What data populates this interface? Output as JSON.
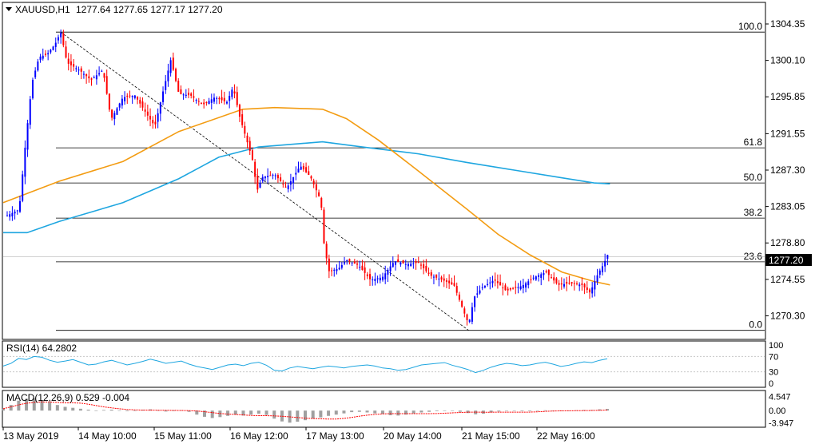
{
  "header": {
    "symbol": "XAUUSD,H1",
    "ohlc": "1277.64 1277.65 1277.17 1277.20"
  },
  "chart_data": [
    {
      "type": "candlestick",
      "name": "price",
      "ylim": [
        1268.2,
        1306.4
      ],
      "y_ticks": [
        "1304.35",
        "1300.10",
        "1295.85",
        "1291.55",
        "1287.30",
        "1283.05",
        "1278.80",
        "1274.55",
        "1270.30"
      ],
      "price_tag": "1277.20",
      "x_ticks": [
        "13 May 2019",
        "14 May 10:00",
        "15 May 11:00",
        "16 May 12:00",
        "17 May 13:00",
        "20 May 14:00",
        "21 May 15:00",
        "22 May 16:00"
      ],
      "fibonacci": [
        {
          "label": "100.0",
          "price": 1303.4
        },
        {
          "label": "61.8",
          "price": 1289.9
        },
        {
          "label": "50.0",
          "price": 1285.8
        },
        {
          "label": "38.2",
          "price": 1281.7
        },
        {
          "label": "23.6",
          "price": 1276.6
        },
        {
          "label": "0.0",
          "price": 1268.6
        }
      ],
      "colors": {
        "up": "#0000ff",
        "down": "#ff0000",
        "ma_fast": "#f39c12",
        "ma_slow": "#1ea6e0",
        "fib": "#000000"
      },
      "ma_fast": [
        [
          0,
          1283.5
        ],
        [
          70,
          1286.0
        ],
        [
          150,
          1288.3
        ],
        [
          220,
          1291.8
        ],
        [
          300,
          1294.4
        ],
        [
          340,
          1294.6
        ],
        [
          400,
          1294.4
        ],
        [
          430,
          1293.3
        ],
        [
          470,
          1290.8
        ],
        [
          520,
          1287.2
        ],
        [
          580,
          1282.8
        ],
        [
          620,
          1279.8
        ],
        [
          660,
          1277.4
        ],
        [
          700,
          1275.4
        ],
        [
          740,
          1274.3
        ],
        [
          760,
          1273.9
        ]
      ],
      "ma_slow": [
        [
          0,
          1280.0
        ],
        [
          30,
          1280.0
        ],
        [
          70,
          1281.3
        ],
        [
          150,
          1283.5
        ],
        [
          220,
          1286.3
        ],
        [
          270,
          1288.8
        ],
        [
          320,
          1290.0
        ],
        [
          360,
          1290.3
        ],
        [
          400,
          1290.6
        ],
        [
          450,
          1290.0
        ],
        [
          520,
          1289.2
        ],
        [
          580,
          1288.2
        ],
        [
          640,
          1287.3
        ],
        [
          700,
          1286.4
        ],
        [
          740,
          1285.8
        ],
        [
          760,
          1285.7
        ]
      ],
      "path": [
        [
          5,
          1282.0
        ],
        [
          20,
          1282.7
        ],
        [
          28,
          1290.5
        ],
        [
          36,
          1297.5
        ],
        [
          45,
          1300.5
        ],
        [
          55,
          1300.8
        ],
        [
          65,
          1302.0
        ],
        [
          72,
          1303.4
        ],
        [
          80,
          1299.8
        ],
        [
          95,
          1299.0
        ],
        [
          110,
          1297.8
        ],
        [
          125,
          1299.0
        ],
        [
          135,
          1293.2
        ],
        [
          150,
          1295.8
        ],
        [
          165,
          1296.0
        ],
        [
          180,
          1293.8
        ],
        [
          190,
          1292.4
        ],
        [
          200,
          1296.4
        ],
        [
          210,
          1300.2
        ],
        [
          220,
          1296.2
        ],
        [
          235,
          1296.0
        ],
        [
          250,
          1294.9
        ],
        [
          265,
          1295.8
        ],
        [
          280,
          1295.2
        ],
        [
          288,
          1297.0
        ],
        [
          296,
          1293.6
        ],
        [
          305,
          1290.8
        ],
        [
          312,
          1288.6
        ],
        [
          318,
          1284.9
        ],
        [
          325,
          1286.5
        ],
        [
          340,
          1286.8
        ],
        [
          355,
          1285.2
        ],
        [
          372,
          1287.8
        ],
        [
          385,
          1286.5
        ],
        [
          398,
          1283.7
        ],
        [
          402,
          1278.5
        ],
        [
          408,
          1275.5
        ],
        [
          420,
          1275.8
        ],
        [
          430,
          1276.8
        ],
        [
          445,
          1276.2
        ],
        [
          460,
          1274.5
        ],
        [
          475,
          1274.8
        ],
        [
          490,
          1276.7
        ],
        [
          505,
          1276.3
        ],
        [
          520,
          1276.5
        ],
        [
          535,
          1275.0
        ],
        [
          550,
          1274.5
        ],
        [
          565,
          1273.8
        ],
        [
          576,
          1271.0
        ],
        [
          583,
          1269.3
        ],
        [
          590,
          1272.5
        ],
        [
          600,
          1273.6
        ],
        [
          615,
          1274.5
        ],
        [
          630,
          1273.2
        ],
        [
          650,
          1273.8
        ],
        [
          665,
          1274.8
        ],
        [
          680,
          1275.4
        ],
        [
          695,
          1273.9
        ],
        [
          710,
          1274.1
        ],
        [
          725,
          1273.9
        ],
        [
          735,
          1273.0
        ],
        [
          745,
          1275.2
        ],
        [
          752,
          1276.3
        ],
        [
          757,
          1277.4
        ],
        [
          760,
          1277.2
        ]
      ]
    },
    {
      "type": "line",
      "name": "rsi",
      "label": "RSI(14) 64.2802",
      "y_ticks": [
        "100",
        "70",
        "30",
        "0"
      ],
      "ylim": [
        0,
        100
      ],
      "values": [
        45,
        52,
        65,
        62,
        70,
        68,
        60,
        55,
        58,
        62,
        55,
        48,
        50,
        56,
        60,
        54,
        48,
        52,
        57,
        63,
        58,
        52,
        55,
        58,
        50,
        44,
        40,
        36,
        42,
        48,
        50,
        46,
        52,
        55,
        47,
        34,
        32,
        40,
        44,
        41,
        38,
        42,
        45,
        43,
        40,
        44,
        46,
        48,
        45,
        40,
        38,
        34,
        36,
        42,
        48,
        50,
        52,
        54,
        47,
        42,
        36,
        28,
        34,
        42,
        48,
        52,
        50,
        46,
        48,
        52,
        55,
        50,
        44,
        47,
        52,
        56,
        54,
        60,
        64
      ],
      "colors": {
        "line": "#1ea6e0"
      }
    },
    {
      "type": "bar",
      "name": "macd",
      "label": "MACD(12,26,9) 0.529 -0.004",
      "y_ticks": [
        "4.547",
        "0.00",
        "-3.947"
      ],
      "ylim": [
        -4.6,
        5.2
      ],
      "values": [
        0.6,
        1.8,
        3.2,
        3.8,
        4.0,
        3.4,
        2.6,
        1.8,
        1.2,
        0.9,
        0.6,
        0.3,
        -0.1,
        0.2,
        0.3,
        0.1,
        -0.2,
        0.0,
        0.3,
        0.4,
        0.1,
        -0.3,
        -0.1,
        0.1,
        -0.4,
        -1.3,
        -2.0,
        -2.4,
        -2.1,
        -1.7,
        -1.3,
        -1.6,
        -1.3,
        -1.0,
        -1.4,
        -2.6,
        -3.5,
        -3.9,
        -3.6,
        -3.1,
        -2.6,
        -2.2,
        -1.7,
        -1.3,
        -0.9,
        -0.5,
        -0.4,
        -0.6,
        -0.9,
        -1.1,
        -1.5,
        -1.6,
        -1.3,
        -0.9,
        -0.6,
        -0.4,
        -0.2,
        0.0,
        -0.1,
        -0.4,
        -0.8,
        -1.2,
        -1.0,
        -0.6,
        -0.3,
        -0.1,
        0.0,
        -0.2,
        -0.2,
        0.0,
        0.1,
        0.0,
        -0.1,
        0.0,
        0.1,
        0.2,
        0.2,
        0.4,
        0.53
      ],
      "colors": {
        "bar": "#a0a0a0",
        "signal": "#ff0000"
      }
    }
  ]
}
